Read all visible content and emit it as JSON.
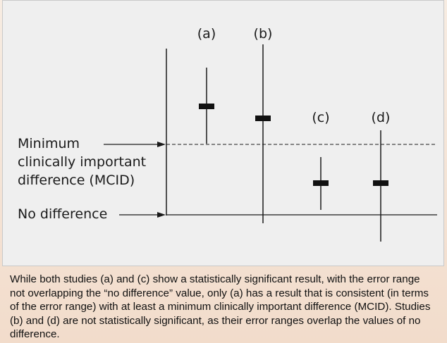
{
  "labels": {
    "mcid_line1": "Minimum",
    "mcid_line2": "clinically important",
    "mcid_line3": "difference (MCID)",
    "no_difference": "No difference"
  },
  "studies": [
    {
      "label": "(a)",
      "has_result_consistent_with_mcid": true,
      "statistically_significant": true,
      "overlaps_no_difference": false
    },
    {
      "label": "(b)",
      "statistically_significant": false,
      "overlaps_no_difference": true
    },
    {
      "label": "(c)",
      "statistically_significant": true,
      "overlaps_no_difference": false
    },
    {
      "label": "(d)",
      "statistically_significant": false,
      "overlaps_no_difference": true
    }
  ],
  "caption": "While both studies (a) and (c) show a statistically significant result, with the error range not overlapping the “no difference” value, only (a) has a result that is consistent (in terms of the error range) with at least a minimum clinically important difference (MCID). Studies (b) and (d) are not statistically significant, as their error ranges overlap the values of no difference.",
  "colors": {
    "panel_bg": "#efefef",
    "slide_bg": "#f2dccb",
    "ink": "#1a1a1a"
  }
}
